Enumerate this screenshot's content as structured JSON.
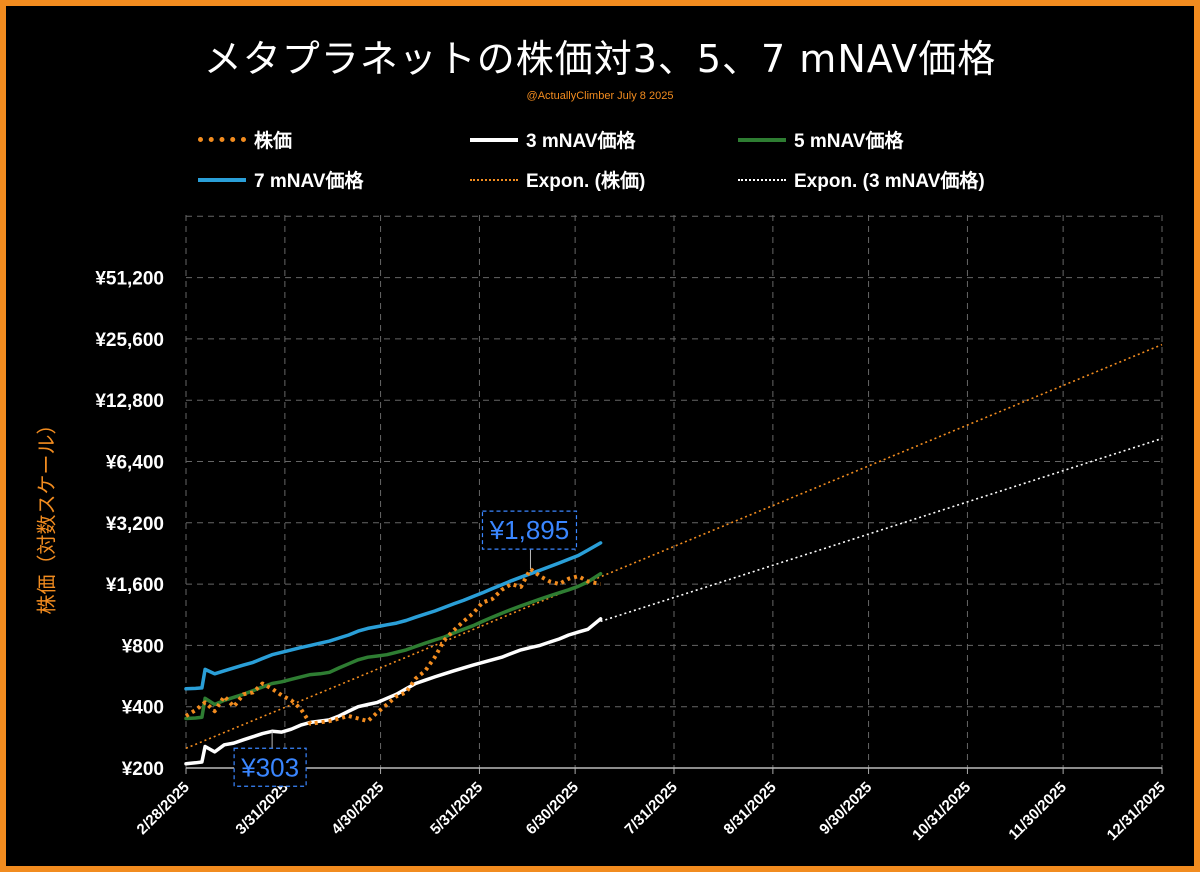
{
  "title": "メタプラネットの株価対3、5、7 mNAV価格",
  "credit": "@ActuallyClimber July 8 2025",
  "colors": {
    "background": "#000000",
    "border": "#f28c1f",
    "stock": "#f28c1f",
    "mnav3": "#ffffff",
    "mnav5": "#2e7d32",
    "mnav7": "#2a9fd8",
    "grid": "#555555",
    "callout": "#3a86ff"
  },
  "legend": [
    {
      "label": "株価",
      "style": "thick-dotted",
      "color": "#f28c1f"
    },
    {
      "label": "3 mNAV価格",
      "style": "solid",
      "color": "#ffffff"
    },
    {
      "label": "5 mNAV価格",
      "style": "solid",
      "color": "#2e7d32"
    },
    {
      "label": "7 mNAV価格",
      "style": "solid",
      "color": "#2a9fd8"
    },
    {
      "label": "Expon. (株価)",
      "style": "thin-dotted",
      "color": "#f28c1f"
    },
    {
      "label": "Expon. (3 mNAV価格)",
      "style": "thin-dotted",
      "color": "#ffffff"
    }
  ],
  "chart_data": {
    "type": "line",
    "title": "メタプラネットの株価対3、5、7 mNAV価格",
    "ylabel": "株価（対数スケール）",
    "xlabel": "",
    "y_scale": "log2",
    "ylim": [
      200,
      81920
    ],
    "y_ticks": [
      "¥200",
      "¥400",
      "¥800",
      "¥1,600",
      "¥3,200",
      "¥6,400",
      "¥12,800",
      "¥25,600",
      "¥51,200"
    ],
    "y_tick_values": [
      200,
      400,
      800,
      1600,
      3200,
      6400,
      12800,
      25600,
      51200
    ],
    "x_ticks": [
      "2/28/2025",
      "3/31/2025",
      "4/30/2025",
      "5/31/2025",
      "6/30/2025",
      "7/31/2025",
      "8/31/2025",
      "9/30/2025",
      "10/31/2025",
      "11/30/2025",
      "12/31/2025"
    ],
    "x_tick_dates": [
      "2025-02-28",
      "2025-03-31",
      "2025-04-30",
      "2025-05-31",
      "2025-06-30",
      "2025-07-31",
      "2025-08-31",
      "2025-09-30",
      "2025-10-31",
      "2025-11-30",
      "2025-12-31"
    ],
    "grid": true,
    "legend_position": "top",
    "series": [
      {
        "name": "株価",
        "style": "thick-dotted",
        "color": "#f28c1f",
        "x": [
          "2025-02-28",
          "2025-03-03",
          "2025-03-06",
          "2025-03-09",
          "2025-03-12",
          "2025-03-15",
          "2025-03-18",
          "2025-03-21",
          "2025-03-24",
          "2025-03-27",
          "2025-03-30",
          "2025-04-02",
          "2025-04-05",
          "2025-04-08",
          "2025-04-11",
          "2025-04-14",
          "2025-04-17",
          "2025-04-20",
          "2025-04-23",
          "2025-04-26",
          "2025-04-29",
          "2025-05-02",
          "2025-05-05",
          "2025-05-08",
          "2025-05-11",
          "2025-05-14",
          "2025-05-17",
          "2025-05-20",
          "2025-05-23",
          "2025-05-26",
          "2025-05-29",
          "2025-06-01",
          "2025-06-04",
          "2025-06-07",
          "2025-06-10",
          "2025-06-13",
          "2025-06-16",
          "2025-06-19",
          "2025-06-22",
          "2025-06-25",
          "2025-06-28",
          "2025-07-01",
          "2025-07-04",
          "2025-07-08"
        ],
        "values": [
          360,
          385,
          420,
          380,
          450,
          400,
          460,
          470,
          520,
          490,
          455,
          430,
          390,
          330,
          335,
          340,
          350,
          360,
          350,
          340,
          375,
          410,
          450,
          470,
          550,
          600,
          700,
          850,
          950,
          1050,
          1150,
          1300,
          1350,
          1500,
          1600,
          1550,
          1895,
          1750,
          1650,
          1600,
          1700,
          1750,
          1650,
          1600
        ]
      },
      {
        "name": "3 mNAV価格",
        "style": "solid",
        "color": "#ffffff",
        "x": [
          "2025-02-28",
          "2025-03-03",
          "2025-03-05",
          "2025-03-06",
          "2025-03-09",
          "2025-03-12",
          "2025-03-15",
          "2025-03-18",
          "2025-03-21",
          "2025-03-24",
          "2025-03-27",
          "2025-03-30",
          "2025-04-02",
          "2025-04-05",
          "2025-04-08",
          "2025-04-11",
          "2025-04-14",
          "2025-04-17",
          "2025-04-20",
          "2025-04-23",
          "2025-04-26",
          "2025-04-29",
          "2025-05-02",
          "2025-05-05",
          "2025-05-08",
          "2025-05-11",
          "2025-05-14",
          "2025-05-17",
          "2025-05-20",
          "2025-05-23",
          "2025-05-26",
          "2025-05-29",
          "2025-06-01",
          "2025-06-04",
          "2025-06-07",
          "2025-06-10",
          "2025-06-13",
          "2025-06-16",
          "2025-06-19",
          "2025-06-22",
          "2025-06-25",
          "2025-06-28",
          "2025-07-01",
          "2025-07-04",
          "2025-07-08"
        ],
        "values": [
          210,
          212,
          214,
          255,
          240,
          260,
          265,
          275,
          285,
          295,
          303,
          300,
          310,
          325,
          335,
          340,
          345,
          360,
          380,
          400,
          410,
          420,
          440,
          460,
          490,
          520,
          540,
          560,
          580,
          600,
          620,
          640,
          660,
          680,
          700,
          730,
          760,
          780,
          800,
          830,
          860,
          900,
          930,
          960,
          1080
        ]
      },
      {
        "name": "5 mNAV価格",
        "style": "solid",
        "color": "#2e7d32",
        "x": [
          "2025-02-28",
          "2025-03-03",
          "2025-03-05",
          "2025-03-06",
          "2025-03-09",
          "2025-03-12",
          "2025-03-15",
          "2025-03-18",
          "2025-03-21",
          "2025-03-24",
          "2025-03-27",
          "2025-03-30",
          "2025-04-02",
          "2025-04-05",
          "2025-04-08",
          "2025-04-11",
          "2025-04-14",
          "2025-04-17",
          "2025-04-20",
          "2025-04-23",
          "2025-04-26",
          "2025-04-29",
          "2025-05-02",
          "2025-05-05",
          "2025-05-08",
          "2025-05-11",
          "2025-05-14",
          "2025-05-17",
          "2025-05-20",
          "2025-05-23",
          "2025-05-26",
          "2025-05-29",
          "2025-06-01",
          "2025-06-04",
          "2025-06-07",
          "2025-06-10",
          "2025-06-13",
          "2025-06-16",
          "2025-06-19",
          "2025-06-22",
          "2025-06-25",
          "2025-06-28",
          "2025-07-01",
          "2025-07-04",
          "2025-07-08"
        ],
        "values": [
          350,
          352,
          355,
          440,
          410,
          430,
          445,
          460,
          480,
          500,
          520,
          530,
          545,
          560,
          575,
          580,
          590,
          620,
          650,
          680,
          700,
          710,
          720,
          740,
          760,
          790,
          820,
          850,
          880,
          920,
          960,
          1000,
          1050,
          1100,
          1150,
          1200,
          1250,
          1300,
          1350,
          1400,
          1450,
          1500,
          1560,
          1640,
          1800
        ]
      },
      {
        "name": "7 mNAV価格",
        "style": "solid",
        "color": "#2a9fd8",
        "x": [
          "2025-02-28",
          "2025-03-03",
          "2025-03-05",
          "2025-03-06",
          "2025-03-09",
          "2025-03-12",
          "2025-03-15",
          "2025-03-18",
          "2025-03-21",
          "2025-03-24",
          "2025-03-27",
          "2025-03-30",
          "2025-04-02",
          "2025-04-05",
          "2025-04-08",
          "2025-04-11",
          "2025-04-14",
          "2025-04-17",
          "2025-04-20",
          "2025-04-23",
          "2025-04-26",
          "2025-04-29",
          "2025-05-02",
          "2025-05-05",
          "2025-05-08",
          "2025-05-11",
          "2025-05-14",
          "2025-05-17",
          "2025-05-20",
          "2025-05-23",
          "2025-05-26",
          "2025-05-29",
          "2025-06-01",
          "2025-06-04",
          "2025-06-07",
          "2025-06-10",
          "2025-06-13",
          "2025-06-16",
          "2025-06-19",
          "2025-06-22",
          "2025-06-25",
          "2025-06-28",
          "2025-07-01",
          "2025-07-04",
          "2025-07-08"
        ],
        "values": [
          490,
          492,
          495,
          610,
          580,
          600,
          620,
          640,
          660,
          690,
          720,
          740,
          760,
          780,
          800,
          820,
          840,
          870,
          900,
          940,
          970,
          990,
          1010,
          1030,
          1060,
          1100,
          1140,
          1180,
          1230,
          1280,
          1330,
          1390,
          1450,
          1520,
          1590,
          1660,
          1730,
          1800,
          1870,
          1950,
          2030,
          2120,
          2210,
          2350,
          2550
        ]
      },
      {
        "name": "Expon. (株価)",
        "style": "thin-dotted",
        "color": "#f28c1f",
        "x": [
          "2025-02-28",
          "2025-12-31"
        ],
        "values": [
          250,
          24000
        ]
      },
      {
        "name": "Expon. (3 mNAV価格)",
        "style": "thin-dotted",
        "color": "#ffffff",
        "x": [
          "2025-07-08",
          "2025-12-31"
        ],
        "values": [
          1050,
          8300
        ]
      }
    ],
    "annotations": [
      {
        "text": "¥1,895",
        "x": "2025-06-16",
        "y": 1895,
        "color": "#3a86ff"
      },
      {
        "text": "¥303",
        "x": "2025-03-27",
        "y": 303,
        "color": "#3a86ff"
      }
    ]
  }
}
